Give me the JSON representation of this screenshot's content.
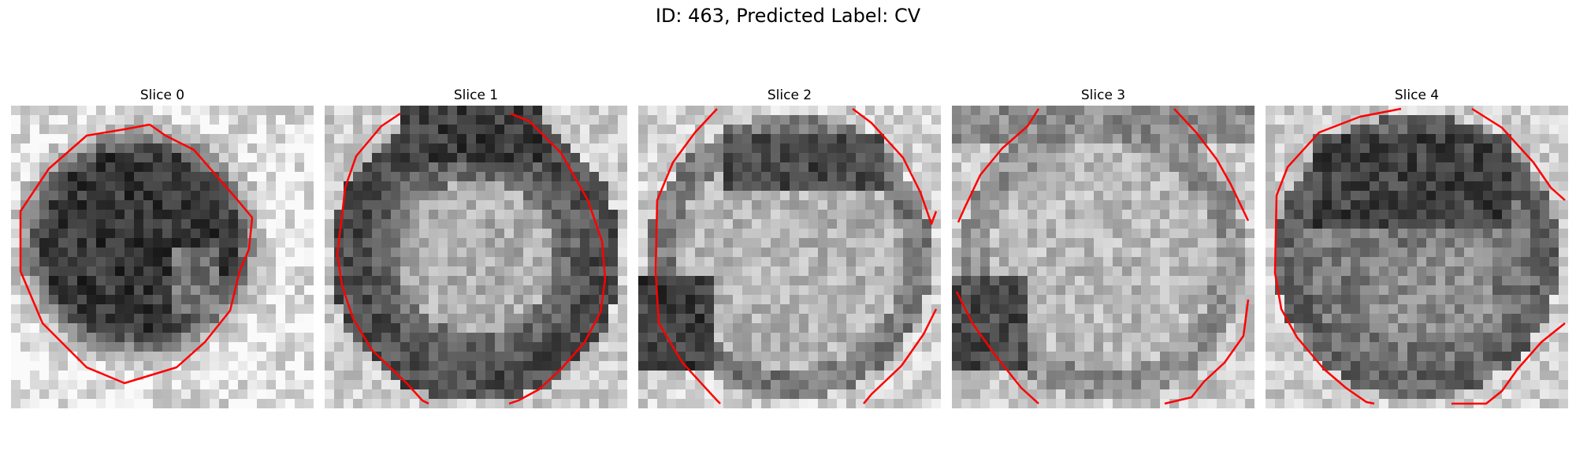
{
  "figure": {
    "title": "ID: 463, Predicted Label: CV"
  },
  "panels": [
    {
      "title": "Slice 0",
      "style": "dark-blob",
      "colors": {
        "contour": "#ff0000"
      }
    },
    {
      "title": "Slice 1",
      "style": "dark-ring",
      "colors": {
        "contour": "#ff0000"
      }
    },
    {
      "title": "Slice 2",
      "style": "top-dark",
      "colors": {
        "contour": "#ff0000"
      }
    },
    {
      "title": "Slice 3",
      "style": "light-grainy",
      "colors": {
        "contour": "#ff0000"
      }
    },
    {
      "title": "Slice 4",
      "style": "top-dark-heavy",
      "colors": {
        "contour": "#ff0000"
      }
    }
  ],
  "colormap": "grayscale"
}
